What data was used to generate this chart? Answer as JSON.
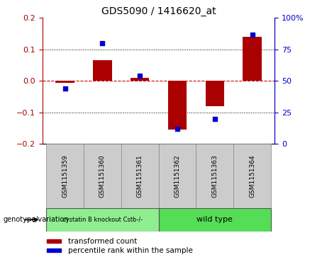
{
  "title": "GDS5090 / 1416620_at",
  "samples": [
    "GSM1151359",
    "GSM1151360",
    "GSM1151361",
    "GSM1151362",
    "GSM1151363",
    "GSM1151364"
  ],
  "bar_values": [
    -0.005,
    0.065,
    0.01,
    -0.155,
    -0.08,
    0.14
  ],
  "scatter_values": [
    44,
    80,
    54,
    12,
    20,
    87
  ],
  "ylim_left": [
    -0.2,
    0.2
  ],
  "ylim_right": [
    0,
    100
  ],
  "yticks_left": [
    -0.2,
    -0.1,
    0,
    0.1,
    0.2
  ],
  "yticks_right": [
    0,
    25,
    50,
    75,
    100
  ],
  "bar_color": "#aa0000",
  "scatter_color": "#0000cc",
  "zero_line_color": "#cc0000",
  "grid_color": "#000000",
  "group1_label": "cystatin B knockout Cstb-/-",
  "group2_label": "wild type",
  "group1_color": "#90ee90",
  "group2_color": "#55dd55",
  "group1_indices": [
    0,
    1,
    2
  ],
  "group2_indices": [
    3,
    4,
    5
  ],
  "genotype_label": "genotype/variation",
  "legend_bar_label": "transformed count",
  "legend_scatter_label": "percentile rank within the sample",
  "bar_width": 0.5,
  "sample_box_color": "#cccccc",
  "sample_box_edge": "#888888",
  "group_box_edge": "#555555"
}
